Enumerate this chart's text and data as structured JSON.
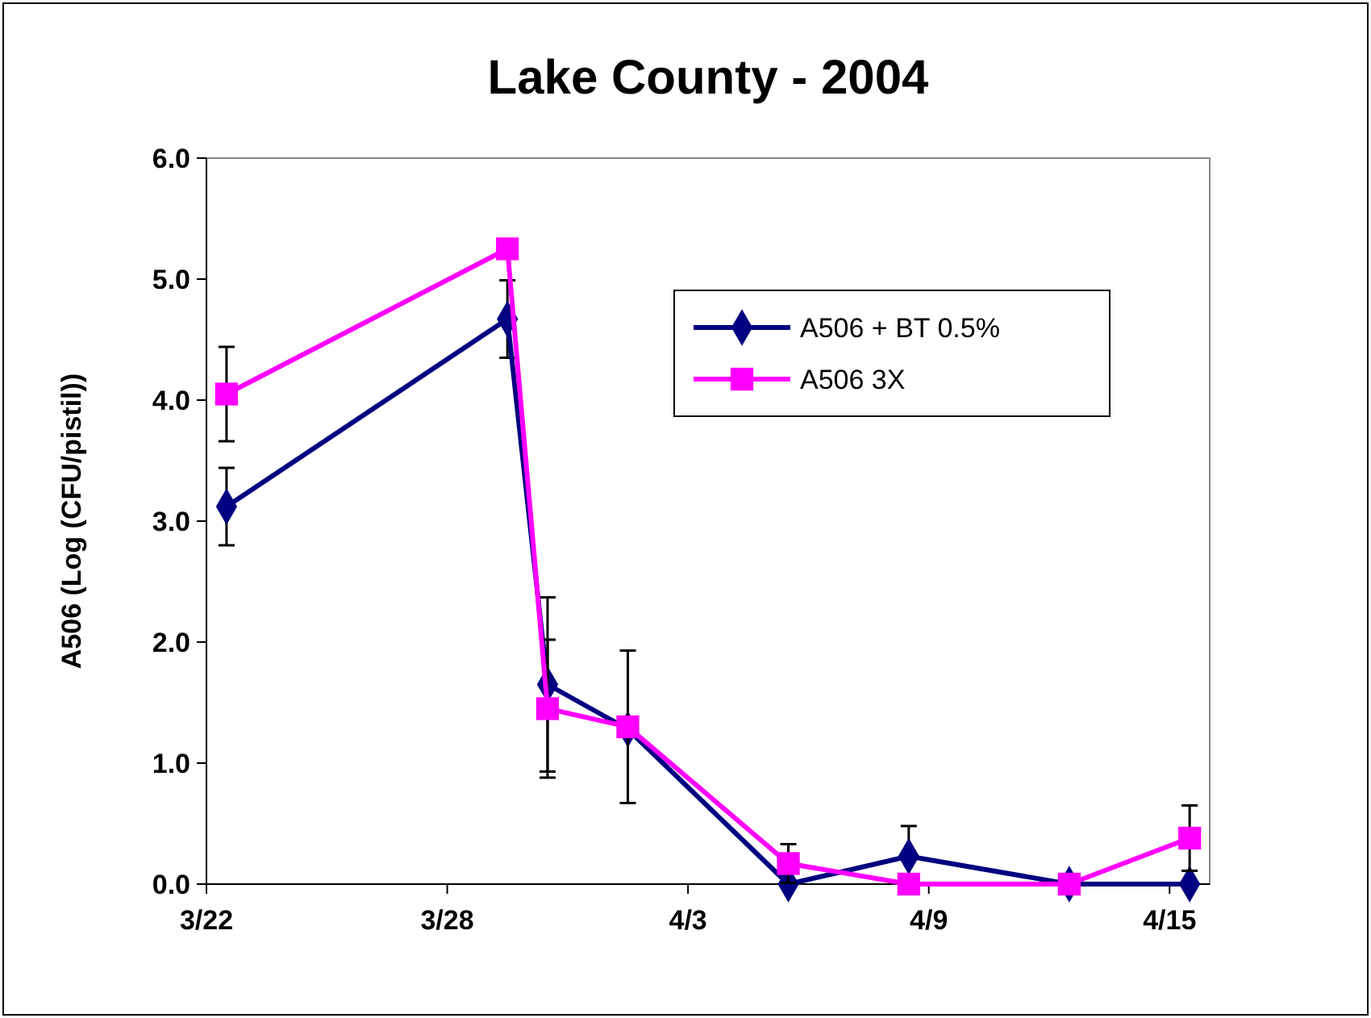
{
  "chart_data": {
    "type": "line",
    "title": "Lake County - 2004",
    "ylabel": "A506 (Log (CFU/pistil))",
    "x": [
      "2004-03-22T12:00",
      "2004-03-29T12:00",
      "2004-03-30T12:00",
      "2004-04-01T12:00",
      "2004-04-05T12:00",
      "2004-04-08T12:00",
      "2004-04-12T12:00",
      "2004-04-15T12:00"
    ],
    "xlim": [
      "2004-03-22",
      "2004-04-16"
    ],
    "xticks": [
      {
        "value": "2004-03-22",
        "label": "3/22"
      },
      {
        "value": "2004-03-28",
        "label": "3/28"
      },
      {
        "value": "2004-04-03",
        "label": "4/3"
      },
      {
        "value": "2004-04-09",
        "label": "4/9"
      },
      {
        "value": "2004-04-15",
        "label": "4/15"
      }
    ],
    "ylim": [
      0,
      6
    ],
    "yticks": [
      {
        "value": 0,
        "label": "0.0"
      },
      {
        "value": 1,
        "label": "1.0"
      },
      {
        "value": 2,
        "label": "2.0"
      },
      {
        "value": 3,
        "label": "3.0"
      },
      {
        "value": 4,
        "label": "4.0"
      },
      {
        "value": 5,
        "label": "5.0"
      },
      {
        "value": 6,
        "label": "6.0"
      }
    ],
    "series": [
      {
        "name": "A506 + BT 0.5%",
        "color": "#000080",
        "marker": "diamond",
        "values": [
          3.12,
          4.67,
          1.65,
          1.28,
          0,
          0.23,
          0,
          0
        ],
        "errors": [
          0.32,
          0.32,
          0.72,
          null,
          null,
          0.25,
          null,
          null
        ]
      },
      {
        "name": "A506 3X",
        "color": "#ff00ff",
        "marker": "square",
        "values": [
          4.05,
          5.25,
          1.45,
          1.3,
          0.17,
          0,
          0,
          0.38
        ],
        "errors": [
          0.39,
          null,
          0.57,
          0.63,
          0.16,
          null,
          null,
          0.27
        ]
      }
    ],
    "legend": "top right",
    "grid": false
  }
}
